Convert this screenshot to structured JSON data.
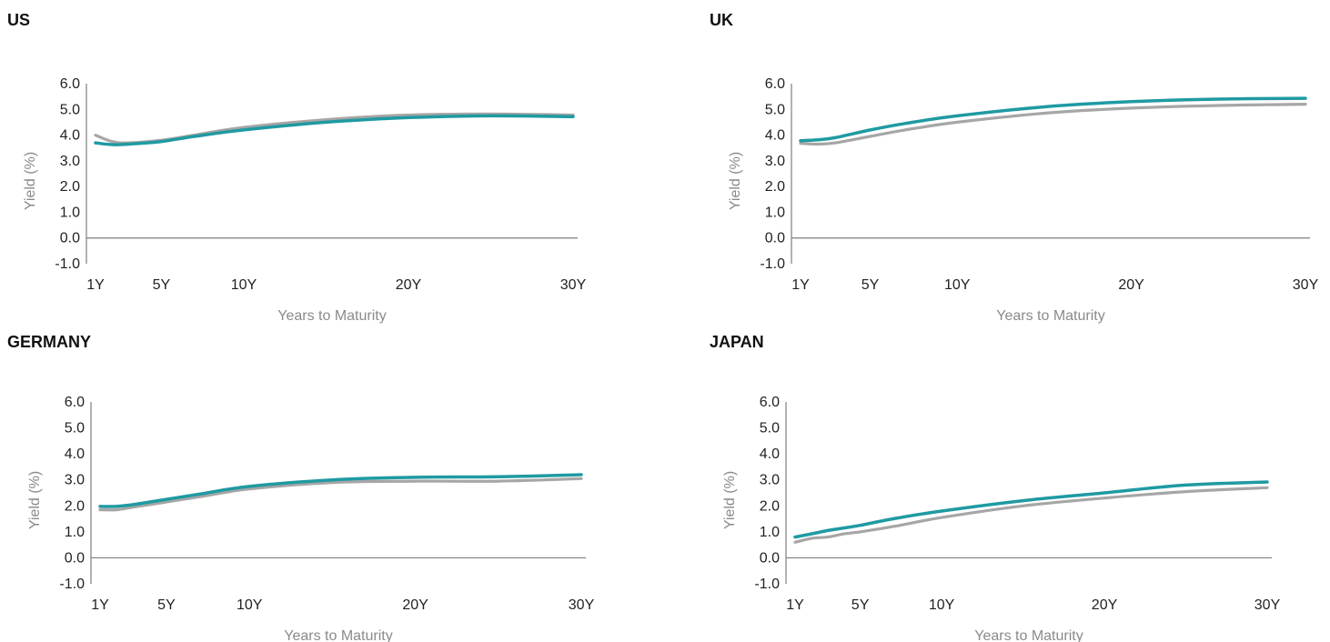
{
  "colors": {
    "current": "#1f9aa2",
    "previous": "#a6a6a6",
    "axis": "#7f7f7f"
  },
  "panels": [
    {
      "title": "US"
    },
    {
      "title": "UK"
    },
    {
      "title": "GERMANY"
    },
    {
      "title": "JAPAN"
    }
  ],
  "chart_data": [
    {
      "type": "line",
      "title": "US",
      "xlabel": "Years to Maturity",
      "ylabel": "Yield (%)",
      "xlim": [
        1,
        30
      ],
      "ylim": [
        -1,
        6
      ],
      "x_ticks": [
        {
          "value": 1,
          "label": "1Y"
        },
        {
          "value": 5,
          "label": "5Y"
        },
        {
          "value": 10,
          "label": "10Y"
        },
        {
          "value": 20,
          "label": "20Y"
        },
        {
          "value": 30,
          "label": "30Y"
        }
      ],
      "y_ticks": [
        "6.0",
        "5.0",
        "4.0",
        "3.0",
        "2.0",
        "1.0",
        "0.0",
        "-1.0"
      ],
      "y_tick_values": [
        6,
        5,
        4,
        3,
        2,
        1,
        0,
        -1
      ],
      "series": [
        {
          "role": "previous",
          "x": [
            1,
            2,
            3,
            5,
            7,
            10,
            15,
            20,
            25,
            30
          ],
          "values": [
            4.0,
            3.75,
            3.7,
            3.8,
            4.0,
            4.3,
            4.6,
            4.78,
            4.82,
            4.78
          ]
        },
        {
          "role": "current",
          "x": [
            1,
            2,
            3,
            5,
            7,
            10,
            15,
            20,
            25,
            30
          ],
          "values": [
            3.7,
            3.63,
            3.65,
            3.75,
            3.95,
            4.2,
            4.5,
            4.68,
            4.75,
            4.72
          ]
        }
      ]
    },
    {
      "type": "line",
      "title": "UK",
      "xlabel": "Years to Maturity",
      "ylabel": "Yield (%)",
      "xlim": [
        1,
        30
      ],
      "ylim": [
        -1,
        6
      ],
      "x_ticks": [
        {
          "value": 1,
          "label": "1Y"
        },
        {
          "value": 5,
          "label": "5Y"
        },
        {
          "value": 10,
          "label": "10Y"
        },
        {
          "value": 20,
          "label": "20Y"
        },
        {
          "value": 30,
          "label": "30Y"
        }
      ],
      "y_ticks": [
        "6.0",
        "5.0",
        "4.0",
        "3.0",
        "2.0",
        "1.0",
        "0.0",
        "-1.0"
      ],
      "y_tick_values": [
        6,
        5,
        4,
        3,
        2,
        1,
        0,
        -1
      ],
      "series": [
        {
          "role": "previous",
          "x": [
            1,
            2,
            3,
            5,
            7,
            10,
            15,
            20,
            25,
            30
          ],
          "values": [
            3.68,
            3.65,
            3.7,
            3.95,
            4.2,
            4.5,
            4.85,
            5.05,
            5.15,
            5.2
          ]
        },
        {
          "role": "current",
          "x": [
            1,
            2,
            3,
            5,
            7,
            10,
            15,
            20,
            25,
            30
          ],
          "values": [
            3.78,
            3.82,
            3.9,
            4.2,
            4.45,
            4.75,
            5.1,
            5.3,
            5.4,
            5.43
          ]
        }
      ]
    },
    {
      "type": "line",
      "title": "GERMANY",
      "xlabel": "Years to Maturity",
      "ylabel": "Yield (%)",
      "xlim": [
        1,
        30
      ],
      "ylim": [
        -1,
        6
      ],
      "x_ticks": [
        {
          "value": 1,
          "label": "1Y"
        },
        {
          "value": 5,
          "label": "5Y"
        },
        {
          "value": 10,
          "label": "10Y"
        },
        {
          "value": 20,
          "label": "20Y"
        },
        {
          "value": 30,
          "label": "30Y"
        }
      ],
      "y_ticks": [
        "6.0",
        "5.0",
        "4.0",
        "3.0",
        "2.0",
        "1.0",
        "0.0",
        "-1.0"
      ],
      "y_tick_values": [
        6,
        5,
        4,
        3,
        2,
        1,
        0,
        -1
      ],
      "series": [
        {
          "role": "previous",
          "x": [
            1,
            2,
            3,
            5,
            7,
            10,
            15,
            20,
            25,
            30
          ],
          "values": [
            1.85,
            1.85,
            1.95,
            2.15,
            2.35,
            2.65,
            2.9,
            2.95,
            2.95,
            3.05
          ]
        },
        {
          "role": "current",
          "x": [
            1,
            2,
            3,
            5,
            7,
            10,
            15,
            20,
            25,
            30
          ],
          "values": [
            1.98,
            1.98,
            2.05,
            2.25,
            2.45,
            2.75,
            3.0,
            3.1,
            3.12,
            3.2
          ]
        }
      ]
    },
    {
      "type": "line",
      "title": "JAPAN",
      "xlabel": "Years to Maturity",
      "ylabel": "Yield (%)",
      "xlim": [
        1,
        30
      ],
      "ylim": [
        -1,
        6
      ],
      "x_ticks": [
        {
          "value": 1,
          "label": "1Y"
        },
        {
          "value": 5,
          "label": "5Y"
        },
        {
          "value": 10,
          "label": "10Y"
        },
        {
          "value": 20,
          "label": "20Y"
        },
        {
          "value": 30,
          "label": "30Y"
        }
      ],
      "y_ticks": [
        "6.0",
        "5.0",
        "4.0",
        "3.0",
        "2.0",
        "1.0",
        "0.0",
        "-1.0"
      ],
      "y_tick_values": [
        6,
        5,
        4,
        3,
        2,
        1,
        0,
        -1
      ],
      "series": [
        {
          "role": "previous",
          "x": [
            1,
            2,
            3,
            4,
            5,
            7,
            10,
            15,
            20,
            25,
            30
          ],
          "values": [
            0.6,
            0.75,
            0.8,
            0.92,
            1.0,
            1.2,
            1.55,
            2.0,
            2.3,
            2.55,
            2.7
          ]
        },
        {
          "role": "current",
          "x": [
            1,
            2,
            3,
            4,
            5,
            7,
            10,
            15,
            20,
            25,
            30
          ],
          "values": [
            0.8,
            0.92,
            1.05,
            1.15,
            1.25,
            1.5,
            1.8,
            2.2,
            2.5,
            2.8,
            2.92
          ]
        }
      ]
    }
  ]
}
